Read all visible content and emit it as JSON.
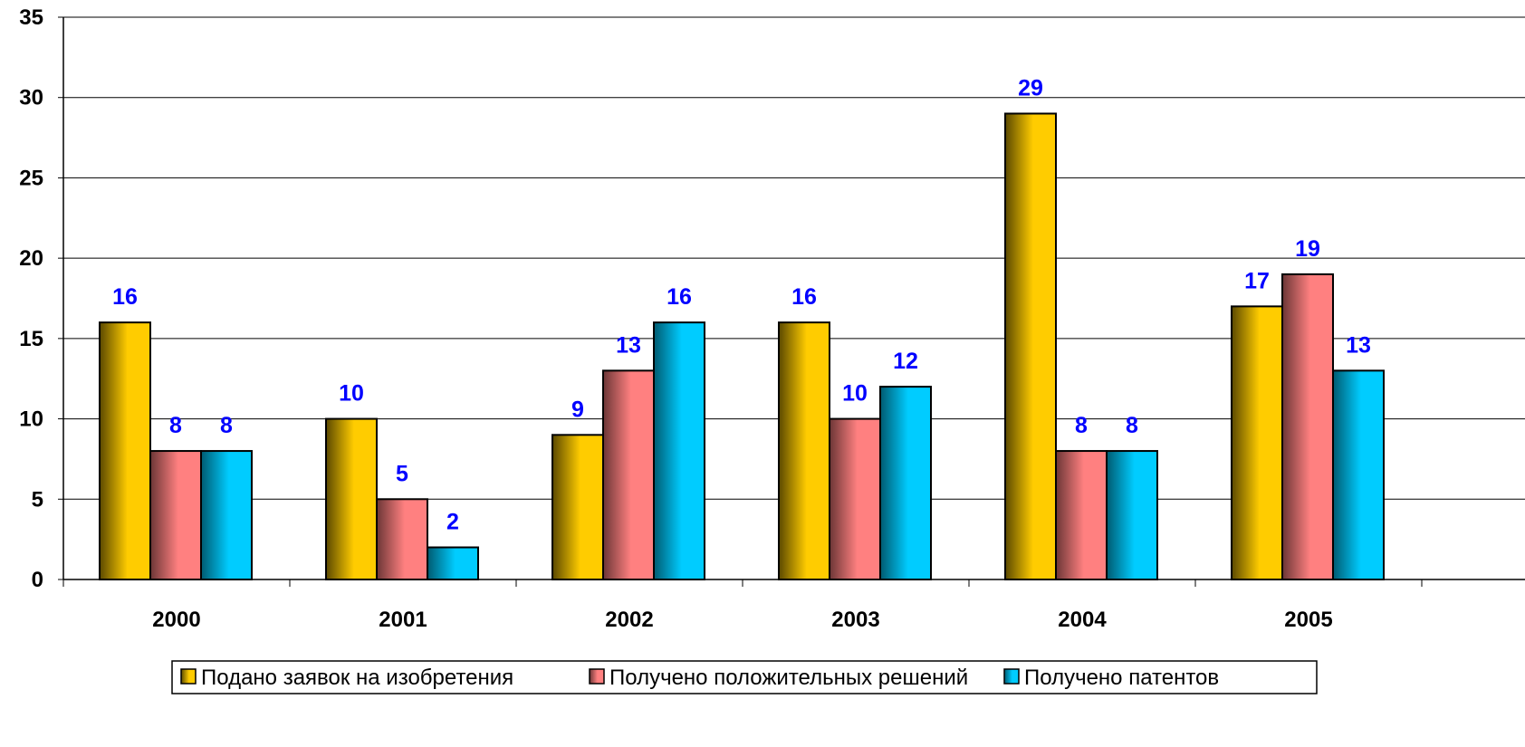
{
  "chart_data": {
    "type": "bar",
    "categories": [
      "2000",
      "2001",
      "2002",
      "2003",
      "2004",
      "2005"
    ],
    "series": [
      {
        "name": "Подано заявок на изобретения",
        "values": [
          16,
          10,
          9,
          16,
          29,
          17
        ],
        "color": "#FFCC00"
      },
      {
        "name": "Получено положительных решений",
        "values": [
          8,
          5,
          13,
          10,
          8,
          19
        ],
        "color": "#FF8080"
      },
      {
        "name": "Получено патентов",
        "values": [
          8,
          2,
          16,
          12,
          8,
          13
        ],
        "color": "#00CCFF"
      }
    ],
    "ylim": [
      0,
      35
    ],
    "yticks": [
      0,
      5,
      10,
      15,
      20,
      25,
      30,
      35
    ],
    "grid": true,
    "legend": "bottom",
    "data_label_color": "#0000FF"
  }
}
